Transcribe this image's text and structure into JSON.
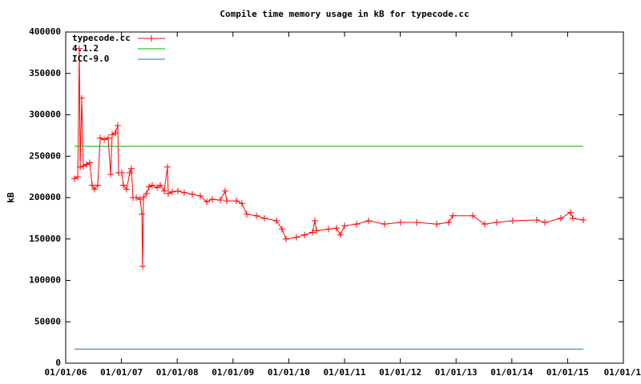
{
  "chart_data": {
    "type": "line",
    "title": "Compile time memory usage in kB for typecode.cc",
    "y_label": "kB",
    "xlim": [
      2006,
      2016
    ],
    "xticks": [
      {
        "value": 2006,
        "label": "01/01/06"
      },
      {
        "value": 2007,
        "label": "01/01/07"
      },
      {
        "value": 2008,
        "label": "01/01/08"
      },
      {
        "value": 2009,
        "label": "01/01/09"
      },
      {
        "value": 2010,
        "label": "01/01/10"
      },
      {
        "value": 2011,
        "label": "01/01/11"
      },
      {
        "value": 2012,
        "label": "01/01/12"
      },
      {
        "value": 2013,
        "label": "01/01/13"
      },
      {
        "value": 2014,
        "label": "01/01/14"
      },
      {
        "value": 2015,
        "label": "01/01/15"
      },
      {
        "value": 2016,
        "label": "01/01/1"
      }
    ],
    "ylim": [
      0,
      400000
    ],
    "yticks": [
      0,
      50000,
      100000,
      150000,
      200000,
      250000,
      300000,
      350000,
      400000
    ],
    "legend": "top-left",
    "series": [
      {
        "name": "typecode.cc",
        "color": "#ff0000",
        "markers": true,
        "x": [
          2006.158,
          2006.216,
          2006.244,
          2006.259,
          2006.287,
          2006.316,
          2006.374,
          2006.431,
          2006.474,
          2006.517,
          2006.575,
          2006.618,
          2006.69,
          2006.761,
          2006.805,
          2006.833,
          2006.891,
          2006.934,
          2006.948,
          2007.006,
          2007.034,
          2007.092,
          2007.149,
          2007.178,
          2007.207,
          2007.264,
          2007.336,
          2007.365,
          2007.379,
          2007.394,
          2007.451,
          2007.494,
          2007.552,
          2007.638,
          2007.695,
          2007.767,
          2007.825,
          2007.839,
          2007.911,
          2008.011,
          2008.126,
          2008.27,
          2008.414,
          2008.529,
          2008.629,
          2008.773,
          2008.859,
          2008.888,
          2009.06,
          2009.161,
          2009.247,
          2009.42,
          2009.563,
          2009.779,
          2009.879,
          2009.951,
          2010.138,
          2010.282,
          2010.425,
          2010.468,
          2010.497,
          2010.713,
          2010.856,
          2010.928,
          2011.0,
          2011.216,
          2011.431,
          2011.718,
          2012.006,
          2012.293,
          2012.652,
          2012.868,
          2012.94,
          2013.299,
          2013.514,
          2013.73,
          2014.017,
          2014.448,
          2014.592,
          2014.879,
          2015.052,
          2015.095,
          2015.282
        ],
        "values": [
          223000,
          225000,
          380000,
          237000,
          320000,
          238000,
          240000,
          242000,
          215000,
          210000,
          215000,
          272000,
          270000,
          272000,
          228000,
          276000,
          278000,
          287000,
          230000,
          230000,
          215000,
          210000,
          230000,
          235000,
          200000,
          200000,
          198000,
          180000,
          117000,
          200000,
          205000,
          213000,
          215000,
          212000,
          215000,
          208000,
          237000,
          205000,
          207000,
          208000,
          206000,
          204000,
          202000,
          195000,
          198000,
          197000,
          208000,
          196000,
          196000,
          193000,
          180000,
          178000,
          175000,
          172000,
          162000,
          150000,
          152000,
          155000,
          158000,
          172000,
          160000,
          162000,
          163000,
          155000,
          166000,
          168000,
          172000,
          168000,
          170000,
          170000,
          168000,
          170000,
          178000,
          178000,
          168000,
          170000,
          172000,
          173000,
          170000,
          175000,
          182000,
          175000,
          173000
        ]
      },
      {
        "name": "4.1.2",
        "color": "#00b000",
        "markers": false,
        "x": [
          2006.158,
          2015.282
        ],
        "values": [
          262000,
          262000
        ]
      },
      {
        "name": "ICC-9.0",
        "color": "#0080c0",
        "markers": false,
        "x": [
          2006.158,
          2015.282
        ],
        "values": [
          17000,
          17000
        ]
      }
    ]
  }
}
